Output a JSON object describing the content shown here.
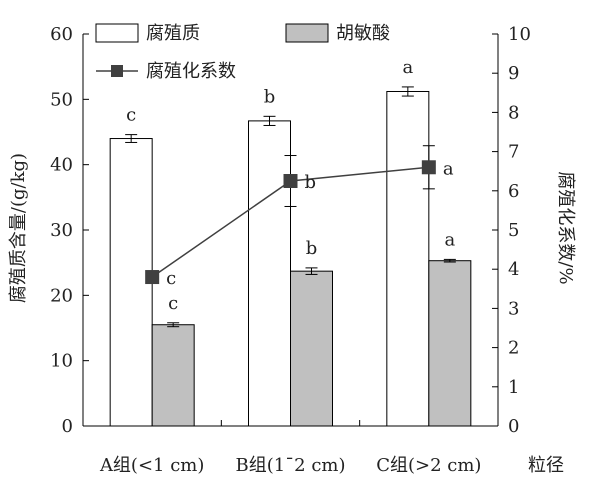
{
  "chart_data": {
    "type": "bar",
    "categories": [
      "A组(<1 cm)",
      "B组(1¯2 cm)",
      "C组(>2 cm)"
    ],
    "x_axis_title": "粒径",
    "y_left": {
      "label": "腐殖质含量/(g/kg)",
      "ylim": [
        0,
        60
      ],
      "ticks": [
        "0",
        "10",
        "20",
        "30",
        "40",
        "50",
        "60"
      ]
    },
    "y_right": {
      "label": "腐殖化系数/%",
      "ylim": [
        0,
        10
      ],
      "ticks": [
        "0",
        "1",
        "2",
        "3",
        "4",
        "5",
        "6",
        "7",
        "8",
        "9",
        "10"
      ]
    },
    "series": [
      {
        "name": "腐殖质",
        "kind": "bar",
        "axis": "left",
        "fill": "#ffffff",
        "values": [
          44.0,
          46.7,
          51.2
        ],
        "errors": [
          0.6,
          0.7,
          0.7
        ],
        "labels": [
          "c",
          "b",
          "a"
        ]
      },
      {
        "name": "胡敏酸",
        "kind": "bar",
        "axis": "left",
        "fill": "#c0c0c0",
        "values": [
          15.5,
          23.7,
          25.3
        ],
        "errors": [
          0.3,
          0.5,
          0.2
        ],
        "labels": [
          "c",
          "b",
          "a"
        ]
      },
      {
        "name": "腐殖化系数",
        "kind": "line",
        "axis": "right",
        "color": "#404040",
        "values": [
          3.8,
          6.25,
          6.6
        ],
        "errors": [
          0.0,
          0.65,
          0.55
        ],
        "labels": [
          "c",
          "b",
          "a"
        ]
      }
    ],
    "legend": "top-left",
    "grid": false
  }
}
